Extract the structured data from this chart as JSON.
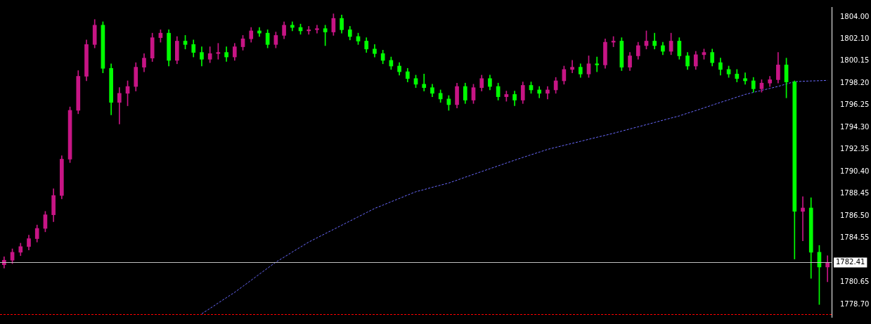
{
  "chart_data": {
    "type": "candlestick",
    "categories": [
      null,
      null,
      null,
      null,
      null,
      null,
      null,
      null,
      null,
      null,
      null,
      null,
      null,
      null,
      null,
      null,
      null,
      null,
      null,
      null,
      null,
      null,
      null,
      null,
      null,
      null,
      null,
      null,
      null,
      null,
      null,
      null,
      null,
      null,
      null,
      null,
      null,
      null,
      null,
      null,
      null,
      null,
      null,
      null,
      null,
      null,
      null,
      null,
      null,
      null,
      null,
      null,
      null,
      null,
      null,
      null,
      null,
      null,
      null,
      null,
      null,
      null,
      null,
      null,
      null,
      null,
      null,
      null,
      null,
      null,
      null,
      null,
      null,
      null,
      null,
      null,
      null,
      null,
      null,
      null,
      null,
      null,
      null,
      null,
      null,
      null,
      null,
      null,
      null,
      null,
      null,
      null,
      null,
      null,
      null,
      null,
      null,
      null,
      null,
      null,
      null
    ],
    "ohlc": [
      [
        1782.2,
        1782.9,
        1781.9,
        1782.6
      ],
      [
        1782.6,
        1783.6,
        1782.3,
        1783.3
      ],
      [
        1783.3,
        1784.1,
        1783.0,
        1783.8
      ],
      [
        1783.8,
        1784.8,
        1783.5,
        1784.5
      ],
      [
        1784.5,
        1785.7,
        1784.2,
        1785.4
      ],
      [
        1785.4,
        1786.9,
        1785.1,
        1786.6
      ],
      [
        1786.6,
        1788.9,
        1786.0,
        1788.3
      ],
      [
        1788.3,
        1791.8,
        1788.0,
        1791.5
      ],
      [
        1791.5,
        1796.1,
        1791.2,
        1795.8
      ],
      [
        1795.8,
        1799.3,
        1795.5,
        1798.8
      ],
      [
        1798.8,
        1802.0,
        1798.4,
        1801.6
      ],
      [
        1801.6,
        1803.8,
        1801.3,
        1803.3
      ],
      [
        1803.3,
        1803.6,
        1799.1,
        1799.5
      ],
      [
        1799.5,
        1799.9,
        1795.4,
        1796.5
      ],
      [
        1796.5,
        1797.8,
        1794.6,
        1797.3
      ],
      [
        1797.3,
        1798.4,
        1796.2,
        1797.9
      ],
      [
        1797.9,
        1800.0,
        1797.5,
        1799.6
      ],
      [
        1799.6,
        1800.8,
        1799.2,
        1800.4
      ],
      [
        1800.4,
        1802.6,
        1800.1,
        1802.2
      ],
      [
        1802.2,
        1802.9,
        1801.8,
        1802.6
      ],
      [
        1802.6,
        1802.9,
        1799.7,
        1800.2
      ],
      [
        1800.2,
        1802.3,
        1799.9,
        1801.9
      ],
      [
        1801.9,
        1802.4,
        1801.2,
        1801.6
      ],
      [
        1801.6,
        1802.0,
        1800.5,
        1800.9
      ],
      [
        1800.9,
        1801.4,
        1799.7,
        1800.3
      ],
      [
        1800.3,
        1801.4,
        1800.0,
        1800.8
      ],
      [
        1800.8,
        1801.7,
        1800.3,
        1800.9
      ],
      [
        1800.9,
        1801.4,
        1800.1,
        1800.5
      ],
      [
        1800.5,
        1801.7,
        1800.2,
        1801.4
      ],
      [
        1801.4,
        1802.4,
        1801.1,
        1802.1
      ],
      [
        1802.1,
        1803.1,
        1801.8,
        1802.8
      ],
      [
        1802.8,
        1803.1,
        1802.3,
        1802.6
      ],
      [
        1802.6,
        1802.9,
        1801.3,
        1801.6
      ],
      [
        1801.6,
        1802.7,
        1801.3,
        1802.4
      ],
      [
        1802.4,
        1803.6,
        1802.1,
        1803.3
      ],
      [
        1803.3,
        1803.6,
        1802.8,
        1803.1
      ],
      [
        1803.1,
        1803.4,
        1802.5,
        1802.8
      ],
      [
        1802.8,
        1803.2,
        1802.5,
        1802.9
      ],
      [
        1802.9,
        1803.3,
        1802.6,
        1803.0
      ],
      [
        1803.0,
        1803.3,
        1801.5,
        1802.7
      ],
      [
        1802.7,
        1804.3,
        1802.4,
        1803.9
      ],
      [
        1803.9,
        1804.2,
        1802.6,
        1802.9
      ],
      [
        1802.9,
        1803.2,
        1802.0,
        1802.3
      ],
      [
        1802.3,
        1802.6,
        1801.6,
        1801.9
      ],
      [
        1801.9,
        1802.2,
        1800.9,
        1801.2
      ],
      [
        1801.2,
        1801.6,
        1800.5,
        1800.8
      ],
      [
        1800.8,
        1801.1,
        1799.9,
        1800.2
      ],
      [
        1800.2,
        1800.5,
        1799.4,
        1799.7
      ],
      [
        1799.7,
        1800.0,
        1798.9,
        1799.2
      ],
      [
        1799.2,
        1799.5,
        1798.3,
        1798.6
      ],
      [
        1798.6,
        1798.9,
        1797.8,
        1798.1
      ],
      [
        1798.1,
        1799.0,
        1797.5,
        1797.8
      ],
      [
        1797.8,
        1798.1,
        1797.0,
        1797.3
      ],
      [
        1797.3,
        1797.6,
        1796.5,
        1796.8
      ],
      [
        1796.8,
        1797.1,
        1795.8,
        1796.3
      ],
      [
        1796.3,
        1798.2,
        1796.0,
        1797.9
      ],
      [
        1797.9,
        1798.2,
        1796.4,
        1796.7
      ],
      [
        1796.7,
        1798.1,
        1796.4,
        1797.8
      ],
      [
        1797.8,
        1798.9,
        1797.5,
        1798.6
      ],
      [
        1798.6,
        1798.9,
        1797.6,
        1797.9
      ],
      [
        1797.9,
        1798.2,
        1796.7,
        1797.0
      ],
      [
        1797.0,
        1797.5,
        1796.6,
        1797.2
      ],
      [
        1797.2,
        1797.5,
        1796.2,
        1796.7
      ],
      [
        1796.7,
        1798.3,
        1796.4,
        1798.0
      ],
      [
        1798.0,
        1798.3,
        1797.3,
        1797.6
      ],
      [
        1797.6,
        1797.9,
        1796.9,
        1797.3
      ],
      [
        1797.3,
        1797.9,
        1796.8,
        1797.6
      ],
      [
        1797.6,
        1798.7,
        1797.3,
        1798.4
      ],
      [
        1798.4,
        1799.7,
        1798.1,
        1799.4
      ],
      [
        1799.4,
        1800.2,
        1799.1,
        1799.6
      ],
      [
        1799.6,
        1799.9,
        1798.7,
        1799.0
      ],
      [
        1799.0,
        1800.6,
        1798.7,
        1799.9
      ],
      [
        1799.9,
        1800.5,
        1799.2,
        1799.8
      ],
      [
        1799.8,
        1802.1,
        1799.5,
        1801.8
      ],
      [
        1801.8,
        1802.3,
        1801.4,
        1801.9
      ],
      [
        1801.9,
        1802.2,
        1799.3,
        1799.6
      ],
      [
        1799.6,
        1800.9,
        1799.3,
        1800.6
      ],
      [
        1800.6,
        1801.8,
        1800.3,
        1801.5
      ],
      [
        1801.5,
        1802.8,
        1801.2,
        1801.9
      ],
      [
        1801.9,
        1802.6,
        1801.2,
        1801.5
      ],
      [
        1801.5,
        1801.8,
        1800.7,
        1801.0
      ],
      [
        1801.0,
        1802.6,
        1800.7,
        1801.9
      ],
      [
        1801.9,
        1802.2,
        1800.3,
        1800.6
      ],
      [
        1800.6,
        1800.9,
        1799.4,
        1799.7
      ],
      [
        1799.7,
        1801.0,
        1799.4,
        1800.7
      ],
      [
        1800.7,
        1801.2,
        1800.3,
        1800.9
      ],
      [
        1800.9,
        1801.2,
        1799.7,
        1800.0
      ],
      [
        1800.0,
        1800.4,
        1798.9,
        1799.4
      ],
      [
        1799.4,
        1799.7,
        1798.7,
        1799.0
      ],
      [
        1799.0,
        1799.4,
        1798.3,
        1798.6
      ],
      [
        1798.6,
        1799.1,
        1798.1,
        1798.4
      ],
      [
        1798.4,
        1798.7,
        1797.4,
        1797.7
      ],
      [
        1797.7,
        1798.5,
        1797.4,
        1798.2
      ],
      [
        1798.2,
        1798.8,
        1797.9,
        1798.5
      ],
      [
        1798.5,
        1800.9,
        1798.2,
        1799.8
      ],
      [
        1799.8,
        1800.4,
        1796.9,
        1798.3
      ],
      [
        1798.3,
        1798.4,
        1782.7,
        1786.9
      ],
      [
        1786.9,
        1788.2,
        1784.3,
        1787.2
      ],
      [
        1787.2,
        1788.1,
        1781.0,
        1783.3
      ],
      [
        1783.3,
        1783.9,
        1778.7,
        1782.0
      ],
      [
        1782.0,
        1783.0,
        1780.7,
        1782.41
      ]
    ],
    "colors": [
      "#c71585",
      "#c71585",
      "#c71585",
      "#c71585",
      "#c71585",
      "#c71585",
      "#c71585",
      "#c71585",
      "#c71585",
      "#c71585",
      "#c71585",
      "#c71585",
      "#00ff00",
      "#00ff00",
      "#c71585",
      "#c71585",
      "#c71585",
      "#c71585",
      "#c71585",
      "#c71585",
      "#00ff00",
      "#c71585",
      "#00ff00",
      "#00ff00",
      "#00ff00",
      "#c71585",
      "#c71585",
      "#00ff00",
      "#c71585",
      "#c71585",
      "#c71585",
      "#00ff00",
      "#00ff00",
      "#c71585",
      "#c71585",
      "#00ff00",
      "#00ff00",
      "#c71585",
      "#c71585",
      "#00ff00",
      "#c71585",
      "#00ff00",
      "#00ff00",
      "#00ff00",
      "#00ff00",
      "#00ff00",
      "#00ff00",
      "#00ff00",
      "#00ff00",
      "#00ff00",
      "#00ff00",
      "#00ff00",
      "#00ff00",
      "#00ff00",
      "#00ff00",
      "#c71585",
      "#00ff00",
      "#c71585",
      "#c71585",
      "#00ff00",
      "#00ff00",
      "#c71585",
      "#00ff00",
      "#c71585",
      "#00ff00",
      "#00ff00",
      "#c71585",
      "#c71585",
      "#c71585",
      "#c71585",
      "#00ff00",
      "#c71585",
      "#00ff00",
      "#c71585",
      "#c71585",
      "#00ff00",
      "#c71585",
      "#c71585",
      "#c71585",
      "#00ff00",
      "#00ff00",
      "#c71585",
      "#00ff00",
      "#00ff00",
      "#c71585",
      "#c71585",
      "#00ff00",
      "#00ff00",
      "#00ff00",
      "#00ff00",
      "#00ff00",
      "#00ff00",
      "#c71585",
      "#c71585",
      "#c71585",
      "#00ff00",
      "#00ff00",
      "#c71585",
      "#00ff00",
      "#00ff00",
      "#c71585"
    ],
    "series": [
      {
        "type": "line",
        "color": "#6a6aff",
        "line_style": "dashed",
        "marker": "none",
        "values": [
          null,
          null,
          null,
          null,
          null,
          null,
          null,
          null,
          null,
          null,
          null,
          null,
          null,
          null,
          null,
          null,
          null,
          null,
          null,
          null,
          null,
          null,
          null,
          null,
          1777.88,
          1778.35,
          1778.83,
          1779.3,
          1779.77,
          1780.3,
          1780.83,
          1781.37,
          1781.9,
          1782.43,
          1782.87,
          1783.32,
          1783.76,
          1784.2,
          1784.57,
          1784.94,
          1785.31,
          1785.68,
          1786.05,
          1786.42,
          1786.79,
          1787.16,
          1787.45,
          1787.75,
          1788.04,
          1788.34,
          1788.63,
          1788.82,
          1789.02,
          1789.21,
          1789.4,
          1789.65,
          1789.91,
          1790.16,
          1790.41,
          1790.66,
          1790.91,
          1791.16,
          1791.41,
          1791.65,
          1791.89,
          1792.12,
          1792.36,
          1792.54,
          1792.72,
          1792.89,
          1793.07,
          1793.25,
          1793.43,
          1793.6,
          1793.78,
          1793.97,
          1794.16,
          1794.35,
          1794.54,
          1794.73,
          1794.93,
          1795.12,
          1795.31,
          1795.55,
          1795.78,
          1796.02,
          1796.26,
          1796.5,
          1796.73,
          1796.97,
          1797.2,
          1797.38,
          1797.56,
          1797.73,
          1797.91,
          1798.12,
          1798.33,
          1798.36,
          1798.39,
          1798.41,
          1798.44
        ]
      }
    ],
    "ylim": [
      1777.6,
      1804.9
    ],
    "yticks": [
      {
        "value": 1804,
        "label": "1804.00"
      },
      {
        "value": 1802.1,
        "label": "1802.10"
      },
      {
        "value": 1800.15,
        "label": "1800.15"
      },
      {
        "value": 1798.2,
        "label": "1798.20"
      },
      {
        "value": 1796.25,
        "label": "1796.25"
      },
      {
        "value": 1794.3,
        "label": "1794.30"
      },
      {
        "value": 1792.35,
        "label": "1792.35"
      },
      {
        "value": 1790.4,
        "label": "1790.40"
      },
      {
        "value": 1788.45,
        "label": "1788.45"
      },
      {
        "value": 1786.5,
        "label": "1786.50"
      },
      {
        "value": 1784.55,
        "label": "1784.55"
      },
      {
        "value": 1780.65,
        "label": "1780.65"
      },
      {
        "value": 1778.7,
        "label": "1778.70"
      }
    ],
    "ref_lines": [
      {
        "axis": "y",
        "value": 1782.41,
        "label": "1782.41",
        "color": "#c0c0c0"
      },
      {
        "axis": "y",
        "value": 1777.85,
        "color": "#ff0000",
        "line_style": "dashed"
      }
    ],
    "tick_labels": "y",
    "grid": false,
    "legend": false
  }
}
